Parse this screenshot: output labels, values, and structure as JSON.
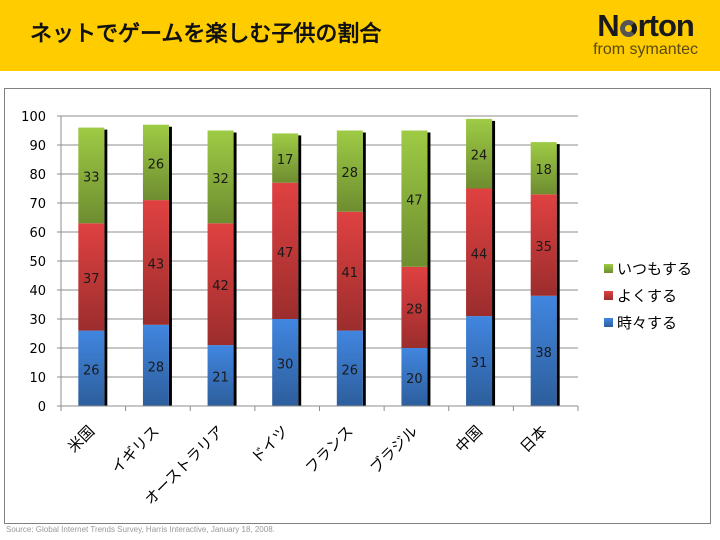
{
  "header": {
    "title": "ネットでゲームを楽しむ子供の割合",
    "logo_name_prefix": "N",
    "logo_name_suffix": "rton",
    "logo_sub": "from symantec",
    "bg_color": "#FFCC00"
  },
  "chart_data": {
    "type": "bar",
    "stacked": true,
    "title": "ネットでゲームを楽しむ子供の割合",
    "xlabel": "",
    "ylabel": "",
    "ylim": [
      0,
      100
    ],
    "yticks": [
      0,
      10,
      20,
      30,
      40,
      50,
      60,
      70,
      80,
      90,
      100
    ],
    "grid": true,
    "legend_position": "right",
    "categories": [
      "米国",
      "イギリス",
      "オーストラリア",
      "ドイツ",
      "フランス",
      "ブラジル",
      "中国",
      "日本"
    ],
    "series": [
      {
        "name": "時々する",
        "color": "#3A78C8",
        "values": [
          26,
          28,
          21,
          30,
          26,
          20,
          31,
          38
        ]
      },
      {
        "name": "よくする",
        "color": "#C83A3A",
        "values": [
          37,
          43,
          42,
          47,
          41,
          28,
          44,
          35
        ]
      },
      {
        "name": "いつもする",
        "color": "#8DB53E",
        "values": [
          33,
          26,
          32,
          17,
          28,
          47,
          24,
          18
        ]
      }
    ],
    "legend_order": [
      "いつもする",
      "よくする",
      "時々する"
    ]
  },
  "footer": {
    "source": "Source:  Global Internet Trends Survey, Harris Interactive, January 18, 2008."
  }
}
